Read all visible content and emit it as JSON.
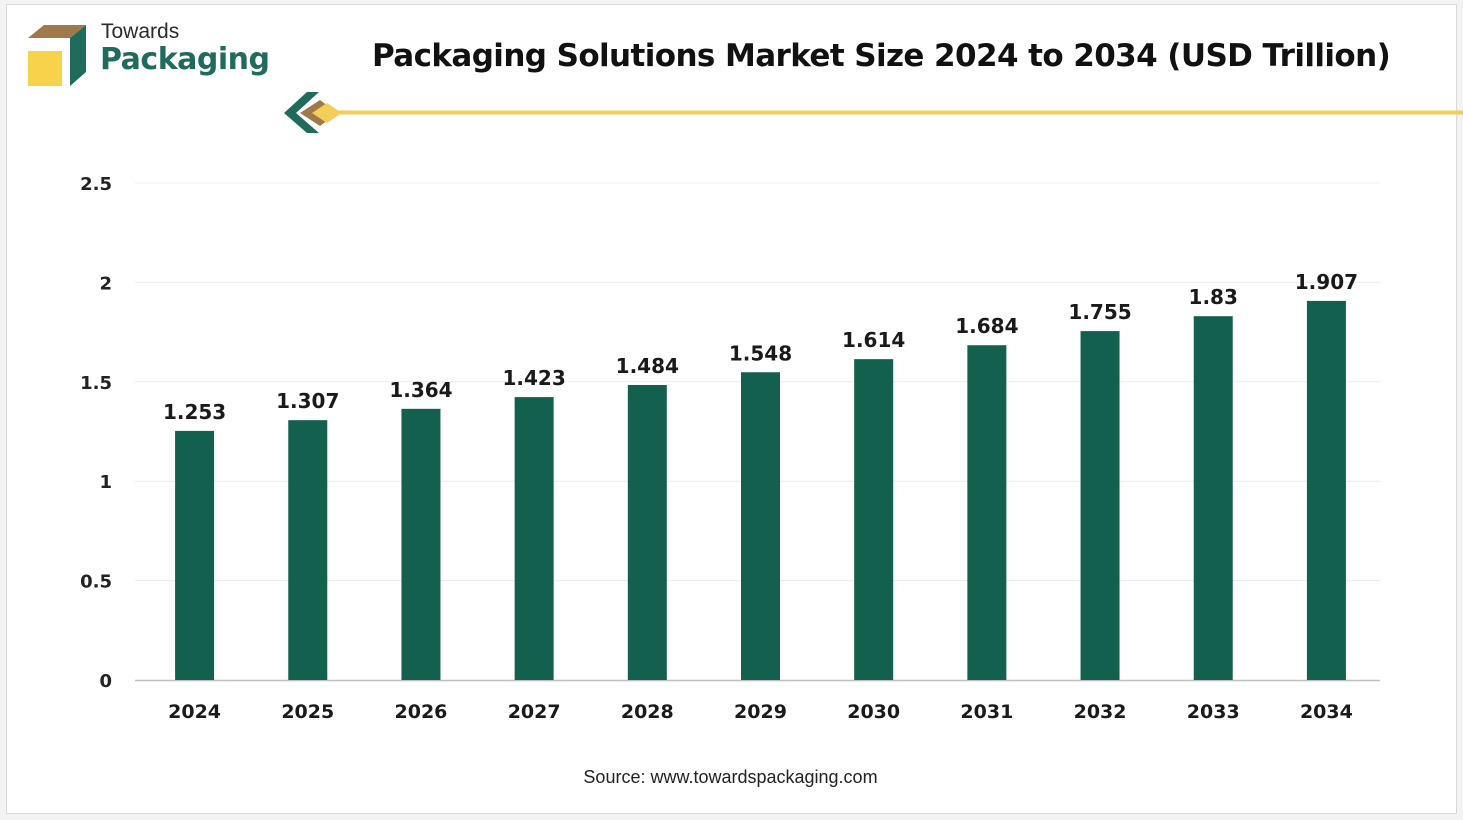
{
  "brand": {
    "line1": "Towards",
    "line2": "Packaging"
  },
  "colors": {
    "bar": "#13604f",
    "brand_green": "#1f6b5c",
    "accent_yellow": "#f2cf5b",
    "logo_brown": "#a0794a",
    "logo_yellow": "#f7d24a"
  },
  "source": "Source: www.towardspackaging.com",
  "chart_data": {
    "type": "bar",
    "title": "Packaging Solutions Market Size 2024 to 2034 (USD Trillion)",
    "xlabel": "",
    "ylabel": "",
    "categories": [
      "2024",
      "2025",
      "2026",
      "2027",
      "2028",
      "2029",
      "2030",
      "2031",
      "2032",
      "2033",
      "2034"
    ],
    "values": [
      1.253,
      1.307,
      1.364,
      1.423,
      1.484,
      1.548,
      1.614,
      1.684,
      1.755,
      1.83,
      1.907
    ],
    "value_labels": [
      "1.253",
      "1.307",
      "1.364",
      "1.423",
      "1.484",
      "1.548",
      "1.614",
      "1.684",
      "1.755",
      "1.83",
      "1.907"
    ],
    "ylim": [
      0,
      2.5
    ],
    "yticks": [
      "0",
      "0.5",
      "1",
      "1.5",
      "2",
      "2.5"
    ],
    "grid": true,
    "legend": "none"
  }
}
